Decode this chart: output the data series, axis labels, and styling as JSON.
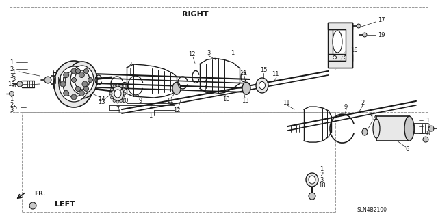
{
  "bg_color": "#ffffff",
  "diagram_code": "SLN4B2100",
  "right_label": "RIGHT",
  "left_label": "LEFT",
  "fr_label": "FR.",
  "lc": "#1a1a1a",
  "dc": "#999999",
  "fc_gray": "#c8c8c8",
  "fc_dark": "#888888",
  "fc_light": "#e8e8e8"
}
